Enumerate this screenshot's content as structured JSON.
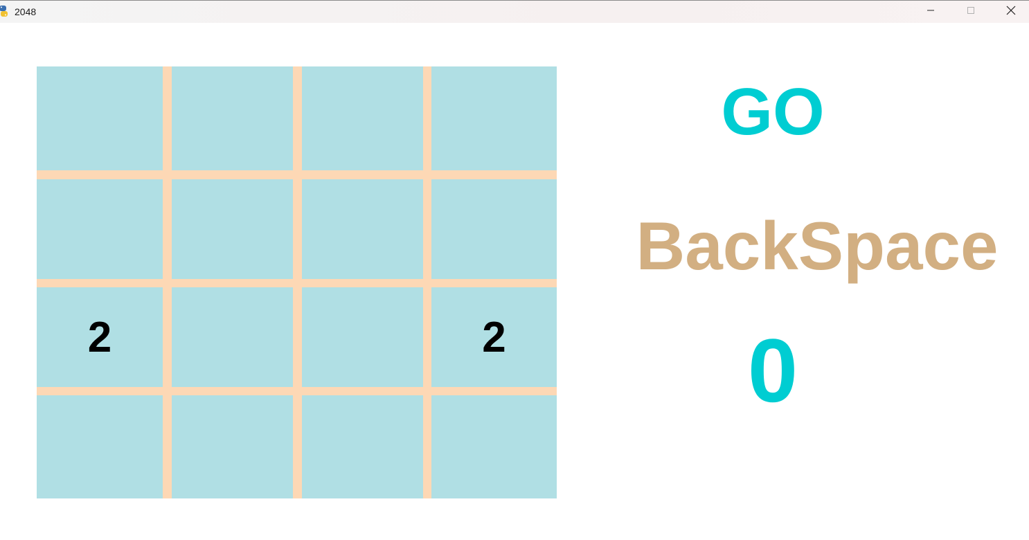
{
  "window": {
    "title": "2048",
    "icon": "python-snake-icon"
  },
  "board": {
    "rows": 4,
    "cols": 4,
    "cells": [
      [
        "",
        "",
        "",
        ""
      ],
      [
        "",
        "",
        "",
        ""
      ],
      [
        "2",
        "",
        "",
        "2"
      ],
      [
        "",
        "",
        "",
        ""
      ]
    ]
  },
  "labels": {
    "go": "GO",
    "backspace": "BackSpace",
    "score": "0"
  },
  "colors": {
    "tile": "#b0dfe4",
    "grid_lines": "#fdd8b5",
    "go": "#00cdd2",
    "backspace": "#d2af82",
    "score": "#00cdd2",
    "tile_text": "#000000"
  }
}
